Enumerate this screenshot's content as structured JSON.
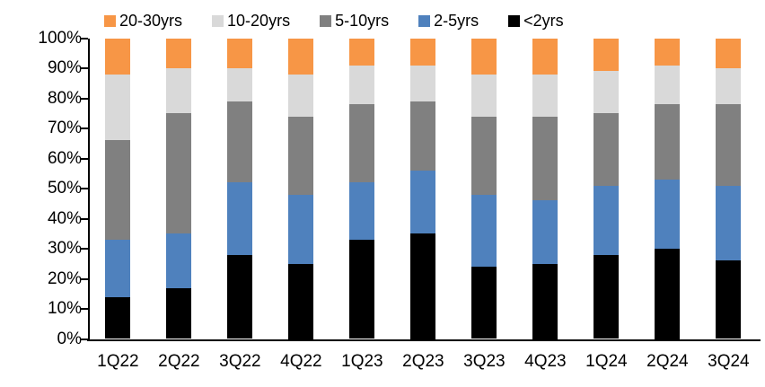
{
  "chart_data": {
    "type": "bar",
    "subtype": "stacked-100-percent-column",
    "title": "",
    "xlabel": "",
    "ylabel": "",
    "ylim": [
      0,
      100
    ],
    "grid": false,
    "legend_position": "top",
    "legend_order": [
      "20-30yrs",
      "10-20yrs",
      "5-10yrs",
      "2-5yrs",
      "<2yrs"
    ],
    "y_ticks": [
      "100%",
      "90%",
      "80%",
      "70%",
      "60%",
      "50%",
      "40%",
      "30%",
      "20%",
      "10%",
      "0%"
    ],
    "categories": [
      "1Q22",
      "2Q22",
      "3Q22",
      "4Q22",
      "1Q23",
      "2Q23",
      "3Q23",
      "4Q23",
      "1Q24",
      "2Q24",
      "3Q24"
    ],
    "series": [
      {
        "name": "<2yrs",
        "color": "#000000",
        "values": [
          14,
          17,
          28,
          25,
          33,
          35,
          24,
          25,
          28,
          30,
          26
        ]
      },
      {
        "name": "2-5yrs",
        "color": "#4F81BD",
        "values": [
          19,
          18,
          24,
          23,
          19,
          21,
          24,
          21,
          23,
          23,
          25
        ]
      },
      {
        "name": "5-10yrs",
        "color": "#808080",
        "values": [
          33,
          40,
          27,
          26,
          26,
          23,
          26,
          28,
          24,
          25,
          27
        ]
      },
      {
        "name": "10-20yrs",
        "color": "#D9D9D9",
        "values": [
          22,
          15,
          11,
          14,
          13,
          12,
          14,
          14,
          14,
          13,
          12
        ]
      },
      {
        "name": "20-30yrs",
        "color": "#F79646",
        "values": [
          12,
          10,
          10,
          12,
          9,
          9,
          12,
          12,
          11,
          9,
          10
        ]
      }
    ],
    "axis_color": "#000000",
    "background_color": "#ffffff"
  }
}
